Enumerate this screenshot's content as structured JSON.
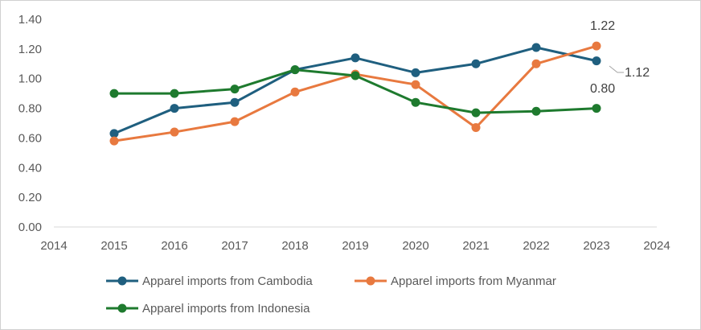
{
  "chart_data": {
    "type": "line",
    "title": "",
    "xlabel": "",
    "ylabel": "",
    "x_ticks": [
      2014,
      2015,
      2016,
      2017,
      2018,
      2019,
      2020,
      2021,
      2022,
      2023,
      2024
    ],
    "y_ticks": [
      "0.00",
      "0.20",
      "0.40",
      "0.60",
      "0.80",
      "1.00",
      "1.20",
      "1.40"
    ],
    "xlim": [
      2014,
      2024
    ],
    "ylim": [
      0,
      1.4
    ],
    "grid": false,
    "legend_position": "bottom",
    "series": [
      {
        "name": "Apparel imports from Cambodia",
        "color": "#1f5f7f",
        "x": [
          2015,
          2016,
          2017,
          2018,
          2019,
          2020,
          2021,
          2022,
          2023
        ],
        "values": [
          0.63,
          0.8,
          0.84,
          1.06,
          1.14,
          1.04,
          1.1,
          1.21,
          1.12
        ]
      },
      {
        "name": "Apparel imports from Myanmar",
        "color": "#e8793f",
        "x": [
          2015,
          2016,
          2017,
          2018,
          2019,
          2020,
          2021,
          2022,
          2023
        ],
        "values": [
          0.58,
          0.64,
          0.71,
          0.91,
          1.03,
          0.96,
          0.67,
          1.1,
          1.22
        ]
      },
      {
        "name": "Apparel imports from Indonesia",
        "color": "#1e7a2e",
        "x": [
          2015,
          2016,
          2017,
          2018,
          2019,
          2020,
          2021,
          2022,
          2023
        ],
        "values": [
          0.9,
          0.9,
          0.93,
          1.06,
          1.02,
          0.84,
          0.77,
          0.78,
          0.8
        ]
      }
    ],
    "annotations": [
      {
        "series": "Apparel imports from Myanmar",
        "x": 2023,
        "text": "1.22"
      },
      {
        "series": "Apparel imports from Cambodia",
        "x": 2023,
        "text": "1.12"
      },
      {
        "series": "Apparel imports from Indonesia",
        "x": 2023,
        "text": "0.80"
      }
    ]
  }
}
